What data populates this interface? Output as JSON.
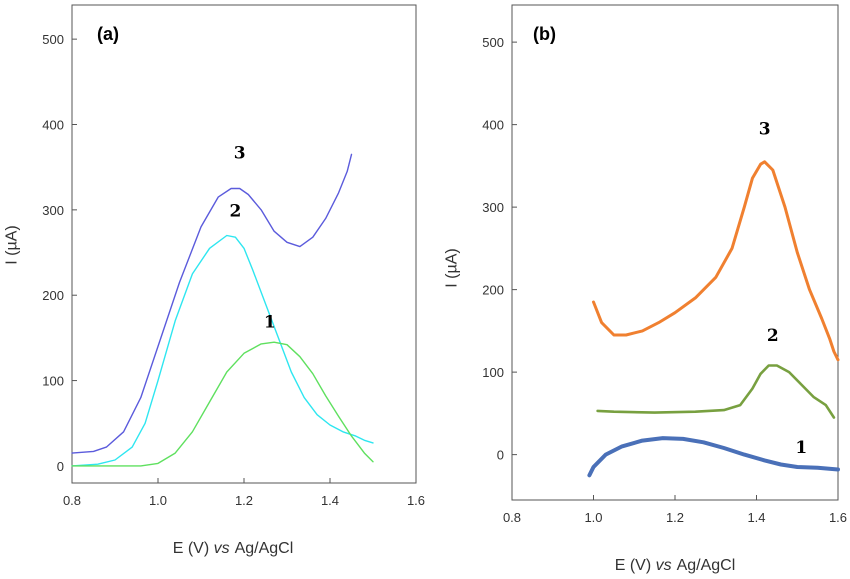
{
  "chart_data": [
    {
      "type": "line",
      "panel_label": "(a)",
      "xlabel": {
        "prefix": "E (V)",
        "italic": "vs",
        "suffix": "Ag/AgCl"
      },
      "ylabel": "I (µA)",
      "xlim": [
        0.8,
        1.6
      ],
      "ylim": [
        -20,
        540
      ],
      "xticks": [
        "0.8",
        "1.0",
        "1.2",
        "1.4",
        "1.6"
      ],
      "yticks": [
        "0",
        "100",
        "200",
        "300",
        "400",
        "500"
      ],
      "series": [
        {
          "label": "3",
          "color": "#5b5bdc",
          "stroke_width": 1.4,
          "label_pos": [
            1.19,
            360
          ],
          "points": [
            [
              0.8,
              15
            ],
            [
              0.85,
              17
            ],
            [
              0.88,
              22
            ],
            [
              0.92,
              40
            ],
            [
              0.96,
              80
            ],
            [
              1.0,
              140
            ],
            [
              1.05,
              215
            ],
            [
              1.1,
              280
            ],
            [
              1.14,
              315
            ],
            [
              1.17,
              325
            ],
            [
              1.19,
              325
            ],
            [
              1.21,
              318
            ],
            [
              1.24,
              300
            ],
            [
              1.27,
              275
            ],
            [
              1.3,
              262
            ],
            [
              1.33,
              257
            ],
            [
              1.36,
              268
            ],
            [
              1.39,
              290
            ],
            [
              1.42,
              320
            ],
            [
              1.44,
              345
            ],
            [
              1.45,
              365
            ]
          ]
        },
        {
          "label": "2",
          "color": "#2ee6f0",
          "stroke_width": 1.4,
          "label_pos": [
            1.18,
            292
          ],
          "points": [
            [
              0.8,
              0
            ],
            [
              0.86,
              2
            ],
            [
              0.9,
              7
            ],
            [
              0.94,
              22
            ],
            [
              0.97,
              50
            ],
            [
              1.0,
              100
            ],
            [
              1.04,
              170
            ],
            [
              1.08,
              225
            ],
            [
              1.12,
              255
            ],
            [
              1.16,
              270
            ],
            [
              1.18,
              268
            ],
            [
              1.2,
              255
            ],
            [
              1.22,
              230
            ],
            [
              1.25,
              190
            ],
            [
              1.28,
              150
            ],
            [
              1.31,
              110
            ],
            [
              1.34,
              80
            ],
            [
              1.37,
              60
            ],
            [
              1.4,
              48
            ],
            [
              1.43,
              40
            ],
            [
              1.46,
              35
            ],
            [
              1.48,
              30
            ],
            [
              1.5,
              27
            ]
          ]
        },
        {
          "label": "1",
          "color": "#5fe05f",
          "stroke_width": 1.4,
          "label_pos": [
            1.26,
            162
          ],
          "points": [
            [
              0.8,
              0
            ],
            [
              0.9,
              0
            ],
            [
              0.96,
              0
            ],
            [
              1.0,
              3
            ],
            [
              1.04,
              15
            ],
            [
              1.08,
              40
            ],
            [
              1.12,
              75
            ],
            [
              1.16,
              110
            ],
            [
              1.2,
              132
            ],
            [
              1.24,
              143
            ],
            [
              1.27,
              145
            ],
            [
              1.3,
              142
            ],
            [
              1.33,
              128
            ],
            [
              1.36,
              108
            ],
            [
              1.39,
              82
            ],
            [
              1.42,
              58
            ],
            [
              1.45,
              35
            ],
            [
              1.48,
              15
            ],
            [
              1.5,
              5
            ]
          ]
        }
      ]
    },
    {
      "type": "line",
      "panel_label": "(b)",
      "xlabel": {
        "prefix": "E (V)",
        "italic": "vs",
        "suffix": "Ag/AgCl"
      },
      "ylabel": "I (µA)",
      "xlim": [
        0.8,
        1.6
      ],
      "ylim": [
        -55,
        545
      ],
      "xticks": [
        "0.8",
        "1.0",
        "1.2",
        "1.4",
        "1.6"
      ],
      "yticks": [
        "0",
        "100",
        "200",
        "300",
        "400",
        "500"
      ],
      "series": [
        {
          "label": "3",
          "color": "#f08030",
          "stroke_width": 3,
          "label_pos": [
            1.42,
            388
          ],
          "points": [
            [
              1.0,
              185
            ],
            [
              1.02,
              160
            ],
            [
              1.05,
              145
            ],
            [
              1.08,
              145
            ],
            [
              1.12,
              150
            ],
            [
              1.16,
              160
            ],
            [
              1.2,
              172
            ],
            [
              1.25,
              190
            ],
            [
              1.3,
              215
            ],
            [
              1.34,
              250
            ],
            [
              1.37,
              300
            ],
            [
              1.39,
              335
            ],
            [
              1.41,
              352
            ],
            [
              1.42,
              355
            ],
            [
              1.44,
              345
            ],
            [
              1.47,
              300
            ],
            [
              1.5,
              245
            ],
            [
              1.53,
              200
            ],
            [
              1.56,
              165
            ],
            [
              1.58,
              140
            ],
            [
              1.59,
              125
            ],
            [
              1.6,
              115
            ]
          ]
        },
        {
          "label": "2",
          "color": "#78a040",
          "stroke_width": 2.6,
          "label_pos": [
            1.44,
            138
          ],
          "points": [
            [
              1.01,
              53
            ],
            [
              1.05,
              52
            ],
            [
              1.15,
              51
            ],
            [
              1.25,
              52
            ],
            [
              1.32,
              54
            ],
            [
              1.36,
              60
            ],
            [
              1.39,
              80
            ],
            [
              1.41,
              98
            ],
            [
              1.43,
              108
            ],
            [
              1.45,
              108
            ],
            [
              1.48,
              100
            ],
            [
              1.51,
              85
            ],
            [
              1.54,
              70
            ],
            [
              1.57,
              60
            ],
            [
              1.59,
              45
            ]
          ]
        },
        {
          "label": "1",
          "color": "#4a70b8",
          "stroke_width": 4,
          "label_pos": [
            1.51,
            2
          ],
          "points": [
            [
              0.99,
              -25
            ],
            [
              1.0,
              -15
            ],
            [
              1.03,
              0
            ],
            [
              1.07,
              10
            ],
            [
              1.12,
              17
            ],
            [
              1.17,
              20
            ],
            [
              1.22,
              19
            ],
            [
              1.27,
              15
            ],
            [
              1.32,
              8
            ],
            [
              1.37,
              0
            ],
            [
              1.42,
              -7
            ],
            [
              1.46,
              -12
            ],
            [
              1.5,
              -15
            ],
            [
              1.55,
              -16
            ],
            [
              1.6,
              -18
            ]
          ]
        }
      ]
    }
  ]
}
